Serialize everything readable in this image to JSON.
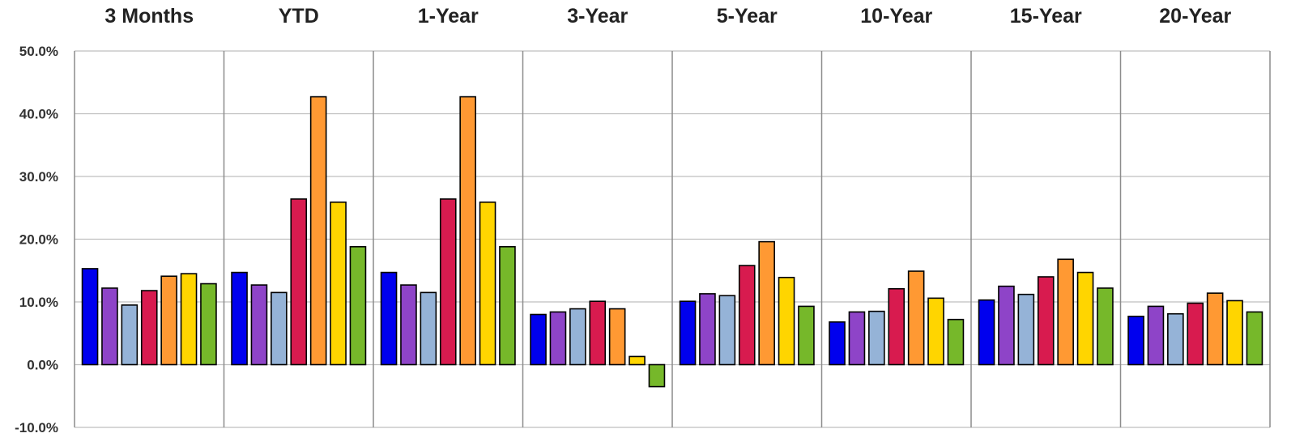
{
  "chart_data": {
    "type": "bar",
    "categories": [
      "3 Months",
      "YTD",
      "1-Year",
      "3-Year",
      "5-Year",
      "10-Year",
      "15-Year",
      "20-Year"
    ],
    "y_ticks": [
      "50.0%",
      "40.0%",
      "30.0%",
      "20.0%",
      "10.0%",
      "0.0%",
      "-10.0%"
    ],
    "ylim": [
      -10,
      50
    ],
    "grid": true,
    "series": [
      {
        "color": "#0000ee",
        "values": [
          15.3,
          14.7,
          14.7,
          8.0,
          10.1,
          6.8,
          10.3,
          7.7
        ]
      },
      {
        "color": "#8e44c8",
        "values": [
          12.2,
          12.7,
          12.7,
          8.4,
          11.3,
          8.4,
          12.5,
          9.3
        ]
      },
      {
        "color": "#95b3d7",
        "values": [
          9.5,
          11.5,
          11.5,
          8.9,
          11.0,
          8.5,
          11.2,
          8.1
        ]
      },
      {
        "color": "#d81b4f",
        "values": [
          11.8,
          26.4,
          26.4,
          10.1,
          15.8,
          12.1,
          14.0,
          9.8
        ]
      },
      {
        "color": "#ff9933",
        "values": [
          14.1,
          42.7,
          42.7,
          8.9,
          19.6,
          14.9,
          16.8,
          11.4
        ]
      },
      {
        "color": "#ffd500",
        "values": [
          14.5,
          25.9,
          25.9,
          1.3,
          13.9,
          10.6,
          14.7,
          10.2
        ]
      },
      {
        "color": "#76b82a",
        "values": [
          12.9,
          18.8,
          18.8,
          -3.5,
          9.3,
          7.2,
          12.2,
          8.4
        ]
      }
    ]
  }
}
